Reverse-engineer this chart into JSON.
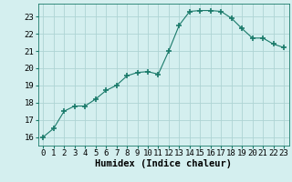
{
  "x": [
    0,
    1,
    2,
    3,
    4,
    5,
    6,
    7,
    8,
    9,
    10,
    11,
    12,
    13,
    14,
    15,
    16,
    17,
    18,
    19,
    20,
    21,
    22,
    23
  ],
  "y": [
    16.0,
    16.5,
    17.5,
    17.8,
    17.8,
    18.2,
    18.7,
    19.0,
    19.55,
    19.75,
    19.8,
    19.65,
    21.0,
    22.5,
    23.3,
    23.35,
    23.35,
    23.3,
    22.9,
    22.3,
    21.75,
    21.75,
    21.4,
    21.2
  ],
  "line_color": "#1a7a6a",
  "marker": "+",
  "marker_size": 4,
  "bg_color": "#d4efef",
  "grid_color": "#aed4d4",
  "xlabel": "Humidex (Indice chaleur)",
  "ylim": [
    15.5,
    23.75
  ],
  "xlim": [
    -0.5,
    23.5
  ],
  "yticks": [
    16,
    17,
    18,
    19,
    20,
    21,
    22,
    23
  ],
  "xticks": [
    0,
    1,
    2,
    3,
    4,
    5,
    6,
    7,
    8,
    9,
    10,
    11,
    12,
    13,
    14,
    15,
    16,
    17,
    18,
    19,
    20,
    21,
    22,
    23
  ],
  "xlabel_fontsize": 7.5,
  "tick_fontsize": 6.5
}
